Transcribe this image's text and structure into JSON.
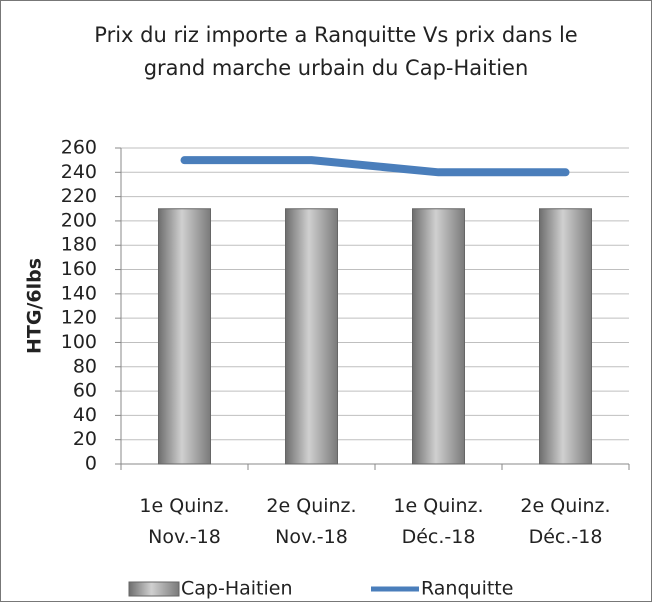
{
  "chart_data": {
    "type": "bar_line",
    "title": "Prix du riz importe a Ranquitte Vs prix dans le grand marche urbain du Cap-Haitien",
    "y_label": "HTG/6lbs",
    "categories": [
      "1e Quinz. Nov.-18",
      "2e Quinz. Nov.-18",
      "1e Quinz. Déc.-18",
      "2e Quinz. Déc.-18"
    ],
    "series": [
      {
        "name": "Cap-Haitien",
        "type": "bar",
        "color": "#a6a6a6",
        "values": [
          210,
          210,
          210,
          210
        ]
      },
      {
        "name": "Ranquitte",
        "type": "line",
        "color": "#4a7ebb",
        "values": [
          250,
          250,
          240,
          240
        ]
      }
    ],
    "ylim": [
      0,
      260
    ],
    "yticks": [
      0,
      20,
      40,
      60,
      80,
      100,
      120,
      140,
      160,
      180,
      200,
      220,
      240,
      260
    ],
    "grid": true,
    "legend": "bottom"
  }
}
